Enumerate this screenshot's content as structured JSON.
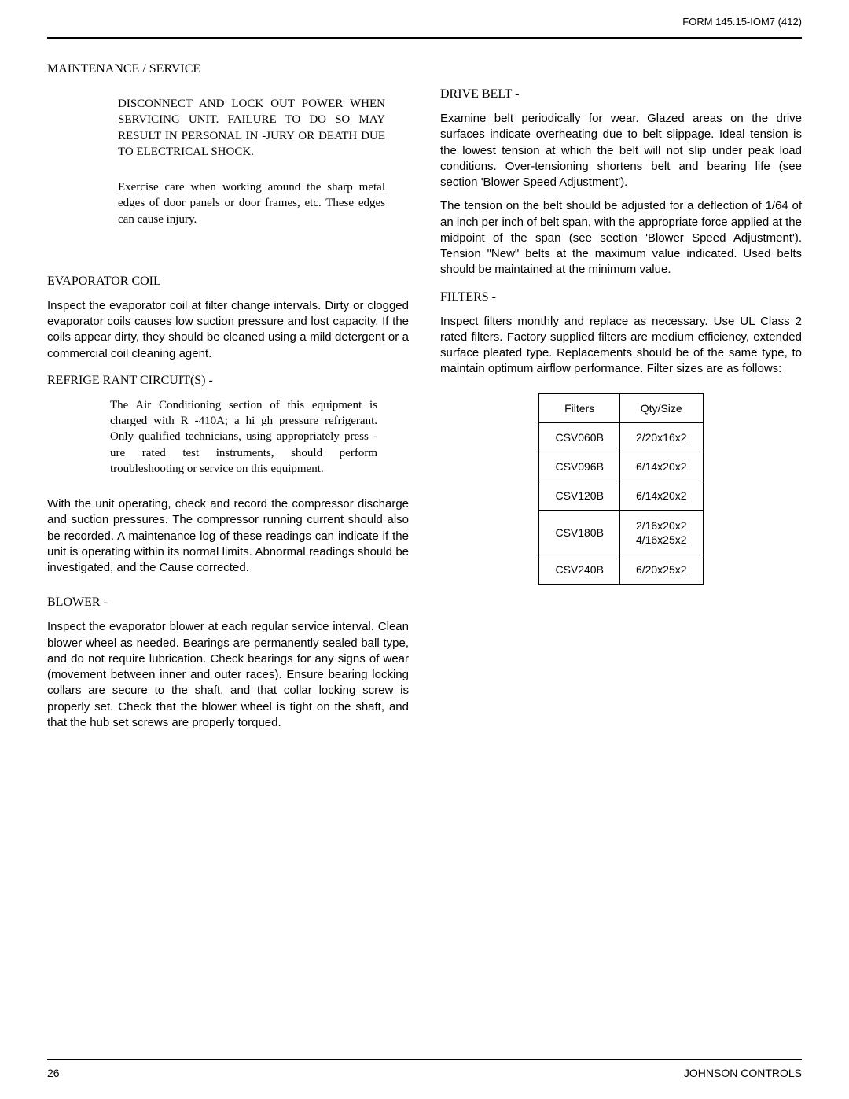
{
  "header": {
    "form": "FORM 145.15-IOM7 (412)"
  },
  "left": {
    "title": "MAINTENANCE / SERVICE",
    "warn1": "DISCONNECT AND LOCK OUT POWER WHEN SERVICING UNIT. FAILURE TO DO SO MAY RESULT IN PERSONAL IN -JURY OR DEATH DUE TO ELECTRICAL SHOCK.",
    "warn2": "Exercise care when working around the sharp metal edges of door panels or door frames, etc. These edges can cause injury.",
    "evap_heading": "EVAPORATOR  COIL",
    "evap_body": "Inspect the evaporator coil at filter change intervals. Dirty or clogged evaporator coils causes low suction pressure and lost capacity. If the coils appear dirty, they should be cleaned using a mild detergent or a commercial coil cleaning agent.",
    "refrig_heading": "REFRIGE RANT CIRCUIT(S) -",
    "refrig_warn": "The Air Conditioning section of this equipment is charged with R -410A; a hi gh pressure refrigerant. Only qualified technicians, using appropriately press - ure rated test instruments, should perform troubleshooting or service on this equipment.",
    "refrig_body": "With the unit operating, check and record the compressor discharge and suction pressures. The compressor running current should also be recorded. A maintenance log of these readings can indicate if the unit is operating within its normal limits. Abnormal readings should be investigated, and the Cause corrected.",
    "blower_heading": "BLOWER  -",
    "blower_body": "Inspect the evaporator blower at each regular service interval. Clean blower wheel as needed. Bearings are permanently sealed ball type, and do not require lubrication. Check bearings for any signs of wear (movement between inner and outer races). Ensure bearing locking collars are secure to the shaft, and that collar locking screw is properly set. Check that the blower wheel is tight on the shaft, and that the hub set screws are properly torqued."
  },
  "right": {
    "drive_heading": "DRIVE BELT -",
    "drive_body1": "Examine belt periodically for wear. Glazed areas on the drive surfaces indicate overheating due to belt slippage. Ideal tension is the lowest tension at which the belt will not slip under peak load conditions. Over-tensioning shortens belt and bearing life (see section 'Blower Speed Adjustment').",
    "drive_body2": "The tension on the belt should be adjusted for a deflection of 1/64 of an inch per inch of belt span, with the appropriate force applied at the midpoint of the span (see section 'Blower Speed Adjustment'). Tension \"New\" belts at the maximum value indicated. Used belts should be maintained at the minimum value.",
    "filters_heading": "FILTERS  -",
    "filters_body": "Inspect filters monthly and replace as necessary. Use UL Class 2 rated filters. Factory supplied filters are medium efficiency, extended surface pleated type. Replacements should be of the same type, to maintain optimum airflow performance. Filter sizes are as follows:",
    "table": {
      "head1": "Filters",
      "head2": "Qty/Size",
      "rows": [
        {
          "model": "CSV060B",
          "size": "2/20x16x2"
        },
        {
          "model": "CSV096B",
          "size": "6/14x20x2"
        },
        {
          "model": "CSV120B",
          "size": "6/14x20x2"
        },
        {
          "model": "CSV180B",
          "size": "2/16x20x2\n4/16x25x2"
        },
        {
          "model": "CSV240B",
          "size": "6/20x25x2"
        }
      ]
    }
  },
  "footer": {
    "page": "26",
    "brand": "JOHNSON CONTROLS"
  }
}
